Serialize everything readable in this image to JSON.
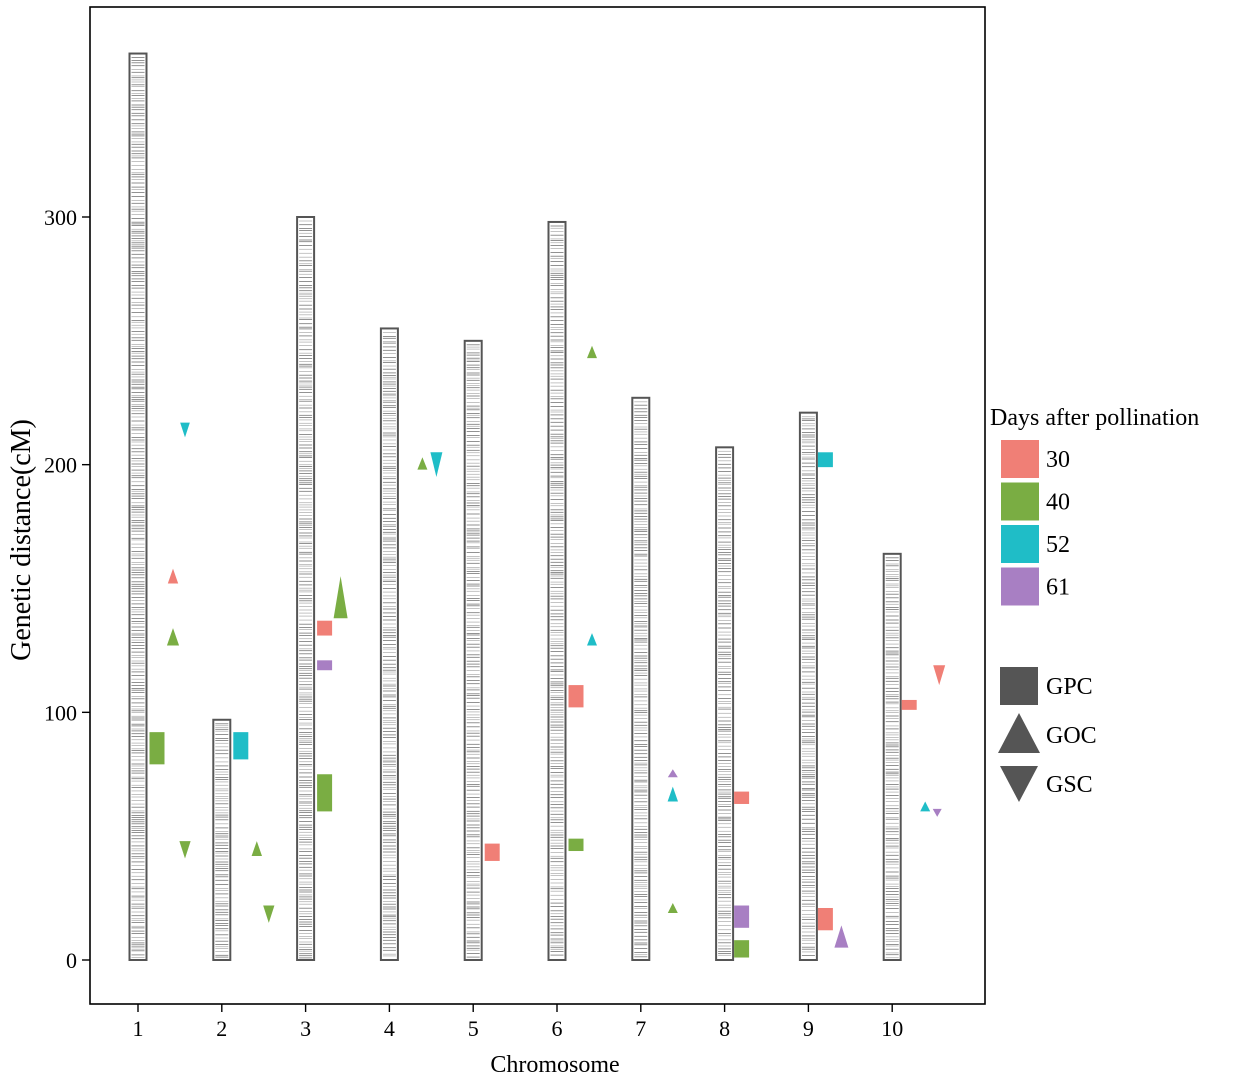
{
  "chart_data": {
    "type": "scatter",
    "subtype": "chromosome-ideogram",
    "xlabel": "Chromosome",
    "ylabel": "Genetic distance(cM)",
    "x": [
      1,
      2,
      3,
      4,
      5,
      6,
      7,
      8,
      9,
      10
    ],
    "x_tick_labels": [
      "1",
      "2",
      "3",
      "4",
      "5",
      "6",
      "7",
      "8",
      "9",
      "10"
    ],
    "y_ticks": [
      0,
      100,
      200,
      300
    ],
    "y_tick_labels": [
      "0",
      "100",
      "200",
      "300"
    ],
    "ylim": [
      -18,
      385
    ],
    "chromosome_lengths": [
      366,
      97,
      300,
      255,
      250,
      298,
      227,
      207,
      221,
      164
    ],
    "legend": {
      "color_title": "Days after pollination",
      "colors": [
        {
          "label": "30",
          "color": "#F07F76"
        },
        {
          "label": "40",
          "color": "#7AAD43"
        },
        {
          "label": "52",
          "color": "#1FBDC7"
        },
        {
          "label": "61",
          "color": "#A87FC3"
        }
      ],
      "shapes": [
        {
          "label": "GPC",
          "shape": "square"
        },
        {
          "label": "GOC",
          "shape": "triangle-up"
        },
        {
          "label": "GSC",
          "shape": "triangle-down"
        }
      ]
    },
    "qtls": [
      {
        "chr": 1,
        "trait": "GPC",
        "dap": "40",
        "start": 79,
        "end": 92
      },
      {
        "chr": 1,
        "trait": "GOC",
        "dap": "30",
        "start": 152,
        "end": 158
      },
      {
        "chr": 1,
        "trait": "GOC",
        "dap": "40",
        "start": 127,
        "end": 134
      },
      {
        "chr": 1,
        "trait": "GSC",
        "dap": "52",
        "start": 211,
        "end": 217
      },
      {
        "chr": 1,
        "trait": "GSC",
        "dap": "40",
        "start": 41,
        "end": 48
      },
      {
        "chr": 2,
        "trait": "GPC",
        "dap": "52",
        "start": 81,
        "end": 92
      },
      {
        "chr": 2,
        "trait": "GOC",
        "dap": "40",
        "start": 42,
        "end": 48
      },
      {
        "chr": 2,
        "trait": "GSC",
        "dap": "40",
        "start": 15,
        "end": 22
      },
      {
        "chr": 3,
        "trait": "GPC",
        "dap": "30",
        "start": 131,
        "end": 137
      },
      {
        "chr": 3,
        "trait": "GPC",
        "dap": "61",
        "start": 117,
        "end": 121
      },
      {
        "chr": 3,
        "trait": "GPC",
        "dap": "40",
        "start": 60,
        "end": 75
      },
      {
        "chr": 3,
        "trait": "GOC",
        "dap": "40",
        "start": 138,
        "end": 155
      },
      {
        "chr": 4,
        "trait": "GOC",
        "dap": "40",
        "start": 198,
        "end": 203
      },
      {
        "chr": 4,
        "trait": "GSC",
        "dap": "52",
        "start": 195,
        "end": 205
      },
      {
        "chr": 5,
        "trait": "GPC",
        "dap": "30",
        "start": 40,
        "end": 47
      },
      {
        "chr": 6,
        "trait": "GOC",
        "dap": "40",
        "start": 243,
        "end": 248
      },
      {
        "chr": 6,
        "trait": "GOC",
        "dap": "52",
        "start": 127,
        "end": 132
      },
      {
        "chr": 6,
        "trait": "GPC",
        "dap": "30",
        "start": 102,
        "end": 111
      },
      {
        "chr": 6,
        "trait": "GPC",
        "dap": "40",
        "start": 44,
        "end": 49
      },
      {
        "chr": 7,
        "trait": "GOC",
        "dap": "61",
        "start": 74,
        "end": 77
      },
      {
        "chr": 7,
        "trait": "GOC",
        "dap": "52",
        "start": 64,
        "end": 70
      },
      {
        "chr": 7,
        "trait": "GOC",
        "dap": "40",
        "start": 19,
        "end": 23
      },
      {
        "chr": 8,
        "trait": "GPC",
        "dap": "30",
        "start": 63,
        "end": 68
      },
      {
        "chr": 8,
        "trait": "GPC",
        "dap": "61",
        "start": 13,
        "end": 22
      },
      {
        "chr": 8,
        "trait": "GPC",
        "dap": "40",
        "start": 1,
        "end": 8
      },
      {
        "chr": 9,
        "trait": "GPC",
        "dap": "52",
        "start": 199,
        "end": 205
      },
      {
        "chr": 9,
        "trait": "GPC",
        "dap": "30",
        "start": 12,
        "end": 21
      },
      {
        "chr": 9,
        "trait": "GOC",
        "dap": "61",
        "start": 5,
        "end": 14
      },
      {
        "chr": 10,
        "trait": "GPC",
        "dap": "30",
        "start": 101,
        "end": 105
      },
      {
        "chr": 10,
        "trait": "GSC",
        "dap": "30",
        "start": 111,
        "end": 119
      },
      {
        "chr": 10,
        "trait": "GOC",
        "dap": "52",
        "start": 60,
        "end": 64
      },
      {
        "chr": 10,
        "trait": "GSC",
        "dap": "61",
        "start": 58,
        "end": 61
      }
    ]
  }
}
